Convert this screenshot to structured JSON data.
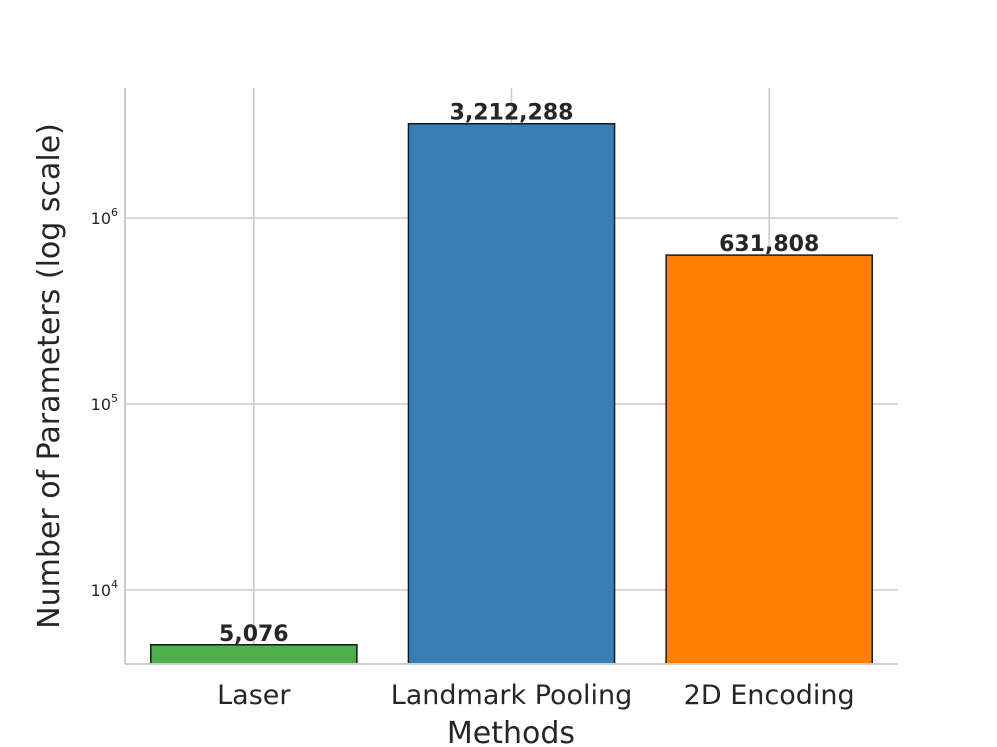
{
  "chart_data": {
    "type": "bar",
    "title": "",
    "xlabel": "Methods",
    "ylabel": "Number of Parameters (log scale)",
    "yscale": "log",
    "ylim": [
      4000,
      5000000
    ],
    "yticks": [
      {
        "value": 10000,
        "base": "10",
        "exp": "4"
      },
      {
        "value": 100000,
        "base": "10",
        "exp": "5"
      },
      {
        "value": 1000000,
        "base": "10",
        "exp": "6"
      }
    ],
    "grid": true,
    "categories": [
      "Laser",
      "Landmark Pooling",
      "2D Encoding"
    ],
    "values": [
      5076,
      3212288,
      631808
    ],
    "value_labels": [
      "5,076",
      "3,212,288",
      "631,808"
    ],
    "colors": [
      "#4daf4a",
      "#377eb8",
      "#ff7f00"
    ]
  }
}
